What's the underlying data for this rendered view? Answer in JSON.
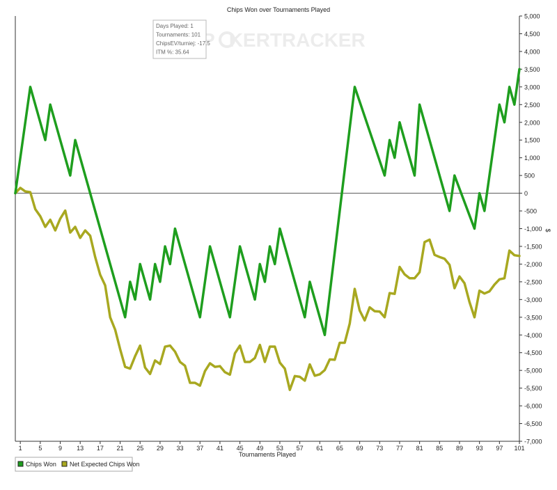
{
  "chart_data": {
    "type": "line",
    "title": "Chips Won over Tournaments Played",
    "xlabel": "Tournaments Played",
    "ylabel": "$",
    "xlim": [
      0,
      101
    ],
    "ylim": [
      -7000,
      5000
    ],
    "x_ticks": [
      1,
      5,
      9,
      13,
      17,
      21,
      25,
      29,
      33,
      37,
      41,
      45,
      49,
      53,
      57,
      61,
      65,
      69,
      73,
      77,
      81,
      85,
      89,
      93,
      97,
      101
    ],
    "y_ticks": [
      5000,
      4500,
      4000,
      3500,
      3000,
      2500,
      2000,
      1500,
      1000,
      500,
      0,
      -500,
      -1000,
      -1500,
      -2000,
      -2500,
      -3000,
      -3500,
      -4000,
      -4500,
      -5000,
      -5500,
      -6000,
      -6500,
      -7000
    ],
    "y_tick_labels": [
      "5,000",
      "4,500",
      "4,000",
      "3,500",
      "3,000",
      "2,500",
      "2,000",
      "1,500",
      "1,000",
      "500",
      "0",
      "-500",
      "-1,000",
      "-1,500",
      "-2,000",
      "-2,500",
      "-3,000",
      "-3,500",
      "-4,000",
      "-4,500",
      "-5,000",
      "-5,500",
      "-6,000",
      "-6,500",
      "-7,000"
    ],
    "grid": false,
    "legend_position": "bottom-left",
    "series": [
      {
        "name": "Chips Won",
        "color": "#1e9e1e",
        "points": [
          [
            0,
            0
          ],
          [
            3,
            3000
          ],
          [
            6,
            1500
          ],
          [
            7,
            2500
          ],
          [
            11,
            500
          ],
          [
            12,
            1500
          ],
          [
            22,
            -3500
          ],
          [
            23,
            -2500
          ],
          [
            24,
            -3000
          ],
          [
            25,
            -2000
          ],
          [
            27,
            -3000
          ],
          [
            28,
            -2000
          ],
          [
            29,
            -2500
          ],
          [
            30,
            -1500
          ],
          [
            31,
            -2000
          ],
          [
            32,
            -1000
          ],
          [
            37,
            -3500
          ],
          [
            39,
            -1500
          ],
          [
            43,
            -3500
          ],
          [
            45,
            -1500
          ],
          [
            48,
            -3000
          ],
          [
            49,
            -2000
          ],
          [
            50,
            -2500
          ],
          [
            51,
            -1500
          ],
          [
            52,
            -2000
          ],
          [
            53,
            -1000
          ],
          [
            58,
            -3500
          ],
          [
            59,
            -2500
          ],
          [
            62,
            -4000
          ],
          [
            68,
            3000
          ],
          [
            74,
            500
          ],
          [
            75,
            1500
          ],
          [
            76,
            1000
          ],
          [
            77,
            2000
          ],
          [
            80,
            500
          ],
          [
            81,
            2500
          ],
          [
            87,
            -500
          ],
          [
            88,
            500
          ],
          [
            92,
            -1000
          ],
          [
            93,
            0
          ],
          [
            94,
            -500
          ],
          [
            97,
            2500
          ],
          [
            98,
            2000
          ],
          [
            99,
            3000
          ],
          [
            100,
            2500
          ],
          [
            101,
            3500
          ]
        ]
      },
      {
        "name": "Net Expected Chips Won",
        "color": "#a8a820",
        "points": [
          [
            0,
            0
          ],
          [
            1,
            150
          ],
          [
            2,
            50
          ],
          [
            3,
            30
          ],
          [
            4,
            -450
          ],
          [
            5,
            -650
          ],
          [
            6,
            -950
          ],
          [
            7,
            -750
          ],
          [
            8,
            -1050
          ],
          [
            9,
            -720
          ],
          [
            10,
            -490
          ],
          [
            11,
            -1110
          ],
          [
            12,
            -950
          ],
          [
            13,
            -1260
          ],
          [
            14,
            -1050
          ],
          [
            15,
            -1200
          ],
          [
            16,
            -1800
          ],
          [
            17,
            -2300
          ],
          [
            18,
            -2600
          ],
          [
            19,
            -3500
          ],
          [
            20,
            -3850
          ],
          [
            21,
            -4400
          ],
          [
            22,
            -4900
          ],
          [
            23,
            -4950
          ],
          [
            24,
            -4600
          ],
          [
            25,
            -4300
          ],
          [
            26,
            -4920
          ],
          [
            27,
            -5100
          ],
          [
            28,
            -4720
          ],
          [
            29,
            -4820
          ],
          [
            30,
            -4330
          ],
          [
            31,
            -4300
          ],
          [
            32,
            -4470
          ],
          [
            33,
            -4760
          ],
          [
            34,
            -4870
          ],
          [
            35,
            -5350
          ],
          [
            36,
            -5350
          ],
          [
            37,
            -5430
          ],
          [
            38,
            -5020
          ],
          [
            39,
            -4800
          ],
          [
            40,
            -4900
          ],
          [
            41,
            -4880
          ],
          [
            42,
            -5050
          ],
          [
            43,
            -5120
          ],
          [
            44,
            -4520
          ],
          [
            45,
            -4300
          ],
          [
            46,
            -4760
          ],
          [
            47,
            -4760
          ],
          [
            48,
            -4650
          ],
          [
            49,
            -4280
          ],
          [
            50,
            -4760
          ],
          [
            51,
            -4330
          ],
          [
            52,
            -4330
          ],
          [
            53,
            -4780
          ],
          [
            54,
            -4950
          ],
          [
            55,
            -5550
          ],
          [
            56,
            -5160
          ],
          [
            57,
            -5180
          ],
          [
            58,
            -5290
          ],
          [
            59,
            -4830
          ],
          [
            60,
            -5150
          ],
          [
            61,
            -5110
          ],
          [
            62,
            -4990
          ],
          [
            63,
            -4690
          ],
          [
            64,
            -4700
          ],
          [
            65,
            -4220
          ],
          [
            66,
            -4220
          ],
          [
            67,
            -3680
          ],
          [
            68,
            -2700
          ],
          [
            69,
            -3310
          ],
          [
            70,
            -3590
          ],
          [
            71,
            -3220
          ],
          [
            72,
            -3330
          ],
          [
            73,
            -3340
          ],
          [
            74,
            -3500
          ],
          [
            75,
            -2820
          ],
          [
            76,
            -2840
          ],
          [
            77,
            -2080
          ],
          [
            78,
            -2290
          ],
          [
            79,
            -2400
          ],
          [
            80,
            -2400
          ],
          [
            81,
            -2230
          ],
          [
            82,
            -1380
          ],
          [
            83,
            -1310
          ],
          [
            84,
            -1740
          ],
          [
            85,
            -1800
          ],
          [
            86,
            -1850
          ],
          [
            87,
            -2020
          ],
          [
            88,
            -2680
          ],
          [
            89,
            -2350
          ],
          [
            90,
            -2540
          ],
          [
            91,
            -3070
          ],
          [
            92,
            -3500
          ],
          [
            93,
            -2750
          ],
          [
            94,
            -2830
          ],
          [
            95,
            -2770
          ],
          [
            96,
            -2580
          ],
          [
            97,
            -2430
          ],
          [
            98,
            -2400
          ],
          [
            99,
            -1620
          ],
          [
            100,
            -1750
          ],
          [
            101,
            -1770
          ]
        ]
      }
    ]
  },
  "tooltip": {
    "lines": [
      "Days Played: 1",
      "Tournaments: 101",
      "ChipsEV/turniej: -17.5",
      "ITM %: 35.64"
    ]
  },
  "watermark": {
    "text_a": "P",
    "text_b": "KER",
    "text_c": "TRACKER"
  },
  "colors": {
    "axis": "#333333",
    "zero_line": "#555555",
    "tooltip_border": "#b8b8b8",
    "watermark": "#ececec"
  }
}
